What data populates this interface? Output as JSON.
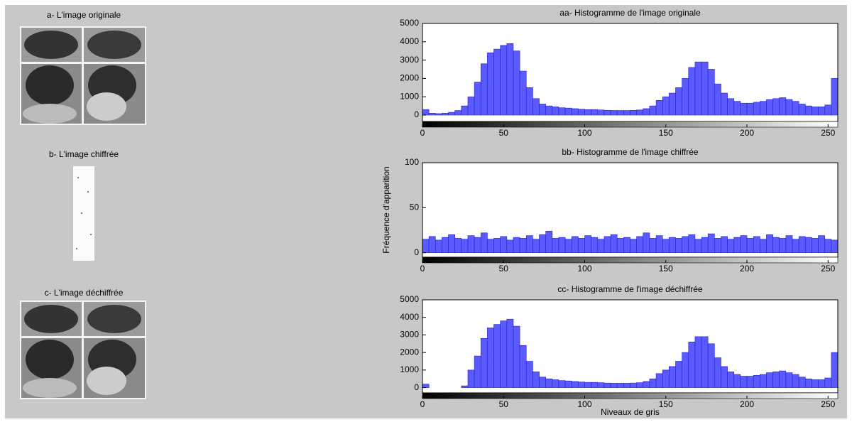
{
  "panels": [
    {
      "title": "a- L'image originale"
    },
    {
      "title": "b- L'image chiffrée"
    },
    {
      "title": "c- L'image déchiffrée"
    }
  ],
  "chart_data": [
    {
      "type": "histogram",
      "title": "aa- Histogramme de l'image originale",
      "color": "#5a5aff",
      "grid": false,
      "xlim": [
        0,
        256
      ],
      "xticks": [
        0,
        50,
        100,
        150,
        200,
        250
      ],
      "ylim": [
        -350,
        5000
      ],
      "yticks": [
        0,
        1000,
        2000,
        3000,
        4000,
        5000
      ],
      "bins": [
        0,
        4,
        8,
        12,
        16,
        20,
        24,
        28,
        32,
        36,
        40,
        44,
        48,
        52,
        56,
        60,
        64,
        68,
        72,
        76,
        80,
        84,
        88,
        92,
        96,
        100,
        104,
        108,
        112,
        116,
        120,
        124,
        128,
        132,
        136,
        140,
        144,
        148,
        152,
        156,
        160,
        164,
        168,
        172,
        176,
        180,
        184,
        188,
        192,
        196,
        200,
        204,
        208,
        212,
        216,
        220,
        224,
        228,
        232,
        236,
        240,
        244,
        248,
        252,
        256
      ],
      "values": [
        300,
        100,
        80,
        100,
        150,
        250,
        500,
        1000,
        1800,
        2800,
        3400,
        3600,
        3800,
        3900,
        3500,
        2400,
        1500,
        900,
        600,
        500,
        450,
        400,
        380,
        350,
        320,
        300,
        300,
        280,
        260,
        250,
        250,
        250,
        260,
        280,
        350,
        500,
        800,
        1000,
        1200,
        1500,
        2000,
        2600,
        2900,
        2900,
        2500,
        1700,
        1200,
        900,
        750,
        650,
        650,
        700,
        750,
        850,
        900,
        950,
        850,
        750,
        600,
        500,
        450,
        450,
        550,
        2000
      ]
    },
    {
      "type": "histogram",
      "title": "bb- Histogramme de l'image chiffrée",
      "y_label": "Fréquence d'apparition",
      "color": "#5a5aff",
      "grid": false,
      "xlim": [
        0,
        256
      ],
      "xticks": [
        0,
        50,
        100,
        150,
        200,
        250
      ],
      "ylim": [
        -5,
        100
      ],
      "yticks": [
        0,
        50,
        100
      ],
      "bins": [
        0,
        4,
        8,
        12,
        16,
        20,
        24,
        28,
        32,
        36,
        40,
        44,
        48,
        52,
        56,
        60,
        64,
        68,
        72,
        76,
        80,
        84,
        88,
        92,
        96,
        100,
        104,
        108,
        112,
        116,
        120,
        124,
        128,
        132,
        136,
        140,
        144,
        148,
        152,
        156,
        160,
        164,
        168,
        172,
        176,
        180,
        184,
        188,
        192,
        196,
        200,
        204,
        208,
        212,
        216,
        220,
        224,
        228,
        232,
        236,
        240,
        244,
        248,
        252,
        256
      ],
      "values": [
        15,
        18,
        14,
        17,
        20,
        16,
        15,
        19,
        17,
        22,
        15,
        16,
        18,
        14,
        17,
        16,
        19,
        15,
        20,
        24,
        16,
        17,
        15,
        18,
        16,
        19,
        17,
        15,
        18,
        20,
        16,
        17,
        15,
        18,
        22,
        16,
        19,
        15,
        17,
        16,
        18,
        20,
        15,
        17,
        21,
        16,
        18,
        15,
        17,
        19,
        16,
        18,
        15,
        20,
        17,
        16,
        19,
        15,
        18,
        17,
        16,
        19,
        15,
        14
      ]
    },
    {
      "type": "histogram",
      "title": "cc- Histogramme de l'image déchiffrée",
      "x_label": "Niveaux de gris",
      "color": "#5a5aff",
      "grid": false,
      "xlim": [
        0,
        256
      ],
      "xticks": [
        0,
        50,
        100,
        150,
        200,
        250
      ],
      "ylim": [
        -300,
        5000
      ],
      "yticks": [
        0,
        1000,
        2000,
        3000,
        4000,
        5000
      ],
      "bins": [
        0,
        4,
        8,
        12,
        16,
        20,
        24,
        28,
        32,
        36,
        40,
        44,
        48,
        52,
        56,
        60,
        64,
        68,
        72,
        76,
        80,
        84,
        88,
        92,
        96,
        100,
        104,
        108,
        112,
        116,
        120,
        124,
        128,
        132,
        136,
        140,
        144,
        148,
        152,
        156,
        160,
        164,
        168,
        172,
        176,
        180,
        184,
        188,
        192,
        196,
        200,
        204,
        208,
        212,
        216,
        220,
        224,
        228,
        232,
        236,
        240,
        244,
        248,
        252,
        256
      ],
      "values": [
        200,
        0,
        0,
        0,
        0,
        0,
        100,
        1000,
        1800,
        2800,
        3400,
        3600,
        3800,
        3900,
        3500,
        2400,
        1500,
        900,
        600,
        500,
        450,
        400,
        380,
        350,
        320,
        300,
        300,
        280,
        260,
        250,
        250,
        250,
        260,
        280,
        350,
        500,
        800,
        1000,
        1200,
        1500,
        2000,
        2600,
        2900,
        2900,
        2500,
        1700,
        1200,
        900,
        750,
        650,
        650,
        700,
        750,
        850,
        900,
        950,
        850,
        750,
        600,
        500,
        450,
        450,
        550,
        2000
      ]
    }
  ]
}
